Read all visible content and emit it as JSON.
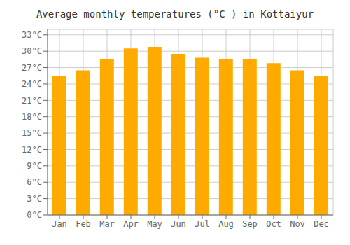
{
  "chart_data": {
    "type": "bar",
    "title": "Average monthly temperatures (°C ) in Kottaiyūr",
    "categories": [
      "Jan",
      "Feb",
      "Mar",
      "Apr",
      "May",
      "Jun",
      "Jul",
      "Aug",
      "Sep",
      "Oct",
      "Nov",
      "Dec"
    ],
    "values": [
      25.5,
      26.5,
      28.5,
      30.5,
      30.8,
      29.5,
      28.8,
      28.5,
      28.5,
      27.8,
      26.5,
      25.5
    ],
    "color": "#FFAA00",
    "ylim": [
      0,
      34
    ],
    "yticks": [
      {
        "value": 0,
        "label": "0°C"
      },
      {
        "value": 3,
        "label": "3°C"
      },
      {
        "value": 6,
        "label": "6°C"
      },
      {
        "value": 9,
        "label": "9°C"
      },
      {
        "value": 12,
        "label": "12°C"
      },
      {
        "value": 15,
        "label": "15°C"
      },
      {
        "value": 18,
        "label": "18°C"
      },
      {
        "value": 21,
        "label": "21°C"
      },
      {
        "value": 24,
        "label": "24°C"
      },
      {
        "value": 27,
        "label": "27°C"
      },
      {
        "value": 30,
        "label": "30°C"
      },
      {
        "value": 33,
        "label": "33°C"
      }
    ],
    "grid": true
  }
}
